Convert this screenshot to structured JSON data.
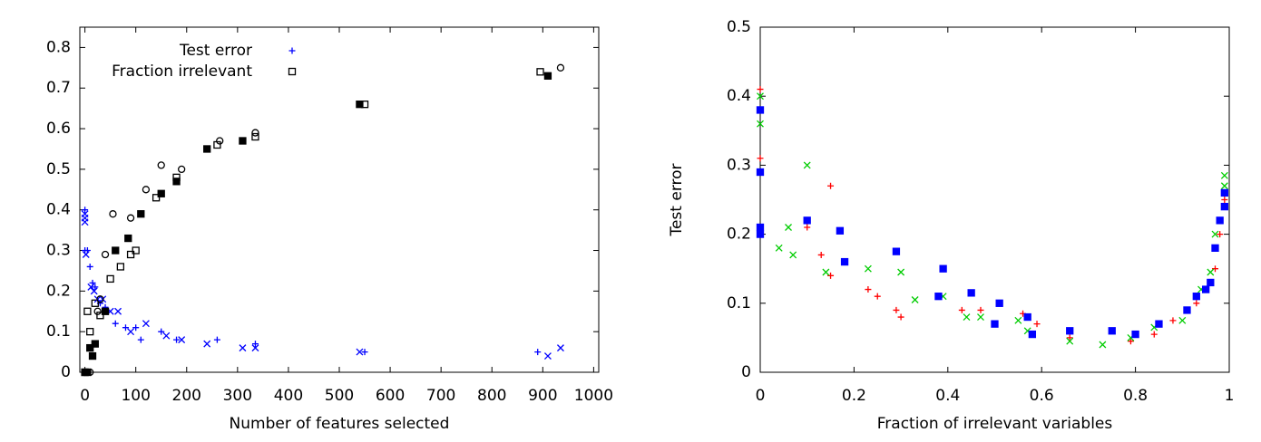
{
  "chart_data": [
    {
      "type": "scatter",
      "x_label": "Number of features selected",
      "xlim": [
        -10,
        1010
      ],
      "ylim": [
        0,
        0.85
      ],
      "xticks": [
        0,
        100,
        200,
        300,
        400,
        500,
        600,
        700,
        800,
        900,
        1000
      ],
      "yticks": [
        0,
        0.1,
        0.2,
        0.3,
        0.4,
        0.5,
        0.6,
        0.7,
        0.8
      ],
      "legend": "upper left",
      "series": [
        {
          "name": "Test error",
          "color": "#0000ff",
          "marker": "plus",
          "x": [
            0,
            0,
            5,
            10,
            15,
            20,
            30,
            40,
            60,
            80,
            100,
            110,
            150,
            180,
            260,
            335,
            550,
            890
          ],
          "values": [
            0.4,
            0.3,
            0.3,
            0.26,
            0.22,
            0.21,
            0.17,
            0.16,
            0.12,
            0.11,
            0.11,
            0.08,
            0.1,
            0.08,
            0.08,
            0.07,
            0.05,
            0.05
          ]
        },
        {
          "name": "Fraction irrelevant",
          "color": "#000000",
          "marker": "square-open",
          "x": [
            0,
            5,
            10,
            20,
            30,
            50,
            70,
            90,
            100,
            140,
            180,
            260,
            335,
            550,
            895
          ],
          "values": [
            0,
            0.15,
            0.1,
            0.17,
            0.14,
            0.23,
            0.26,
            0.29,
            0.3,
            0.43,
            0.48,
            0.56,
            0.58,
            0.66,
            0.74
          ]
        },
        {
          "color": "#0000ff",
          "marker": "cross",
          "x": [
            0,
            0,
            0,
            2,
            12,
            18,
            25,
            35,
            50,
            65,
            90,
            120,
            160,
            190,
            240,
            310,
            335,
            540,
            910,
            935
          ],
          "values": [
            0.39,
            0.38,
            0.37,
            0.29,
            0.21,
            0.2,
            0.18,
            0.18,
            0.15,
            0.15,
            0.1,
            0.12,
            0.09,
            0.08,
            0.07,
            0.06,
            0.06,
            0.05,
            0.04,
            0.06
          ]
        },
        {
          "color": "#000000",
          "marker": "square",
          "x": [
            0,
            5,
            10,
            15,
            20,
            40,
            60,
            85,
            110,
            150,
            180,
            240,
            310,
            540,
            910
          ],
          "values": [
            0,
            0,
            0.06,
            0.04,
            0.07,
            0.15,
            0.3,
            0.33,
            0.39,
            0.44,
            0.47,
            0.55,
            0.57,
            0.66,
            0.73
          ]
        },
        {
          "color": "#000000",
          "marker": "circle",
          "x": [
            0,
            10,
            25,
            30,
            40,
            55,
            90,
            120,
            150,
            190,
            265,
            335,
            935
          ],
          "values": [
            0,
            0,
            0.15,
            0.18,
            0.29,
            0.39,
            0.38,
            0.45,
            0.51,
            0.5,
            0.57,
            0.59,
            0.75
          ]
        }
      ]
    },
    {
      "type": "scatter",
      "x_label": "Fraction of irrelevant variables",
      "y_label": "Test error",
      "xlim": [
        0,
        1
      ],
      "ylim": [
        0,
        0.5
      ],
      "xticks": [
        0,
        0.2,
        0.4,
        0.6,
        0.8,
        1
      ],
      "yticks": [
        0,
        0.1,
        0.2,
        0.3,
        0.4,
        0.5
      ],
      "series": [
        {
          "color": "#ff0000",
          "marker": "plus",
          "x": [
            0,
            0,
            0,
            0.1,
            0.13,
            0.15,
            0.15,
            0.23,
            0.25,
            0.29,
            0.3,
            0.43,
            0.47,
            0.56,
            0.59,
            0.66,
            0.79,
            0.84,
            0.88,
            0.93,
            0.95,
            0.97,
            0.98,
            0.99
          ],
          "values": [
            0.41,
            0.31,
            0.29,
            0.21,
            0.17,
            0.27,
            0.14,
            0.12,
            0.11,
            0.09,
            0.08,
            0.09,
            0.09,
            0.085,
            0.07,
            0.05,
            0.045,
            0.055,
            0.075,
            0.1,
            0.12,
            0.15,
            0.2,
            0.25
          ]
        },
        {
          "color": "#00cc00",
          "marker": "cross",
          "x": [
            0,
            0,
            0.04,
            0.06,
            0.07,
            0.1,
            0.14,
            0.23,
            0.3,
            0.33,
            0.39,
            0.44,
            0.47,
            0.55,
            0.57,
            0.66,
            0.73,
            0.79,
            0.84,
            0.9,
            0.94,
            0.96,
            0.97,
            0.99,
            0.99
          ],
          "values": [
            0.4,
            0.36,
            0.18,
            0.21,
            0.17,
            0.3,
            0.145,
            0.15,
            0.145,
            0.105,
            0.11,
            0.08,
            0.08,
            0.075,
            0.06,
            0.045,
            0.04,
            0.05,
            0.065,
            0.075,
            0.12,
            0.145,
            0.2,
            0.285,
            0.27
          ]
        },
        {
          "color": "#0000ff",
          "marker": "square",
          "x": [
            0,
            0,
            0,
            0,
            0.1,
            0.17,
            0.18,
            0.29,
            0.38,
            0.39,
            0.45,
            0.5,
            0.51,
            0.57,
            0.58,
            0.66,
            0.75,
            0.8,
            0.85,
            0.91,
            0.93,
            0.95,
            0.96,
            0.97,
            0.98,
            0.99,
            0.99
          ],
          "values": [
            0.38,
            0.29,
            0.21,
            0.2,
            0.22,
            0.205,
            0.16,
            0.175,
            0.11,
            0.15,
            0.115,
            0.07,
            0.1,
            0.08,
            0.055,
            0.06,
            0.06,
            0.055,
            0.07,
            0.09,
            0.11,
            0.12,
            0.13,
            0.18,
            0.22,
            0.24,
            0.26
          ]
        }
      ]
    }
  ]
}
